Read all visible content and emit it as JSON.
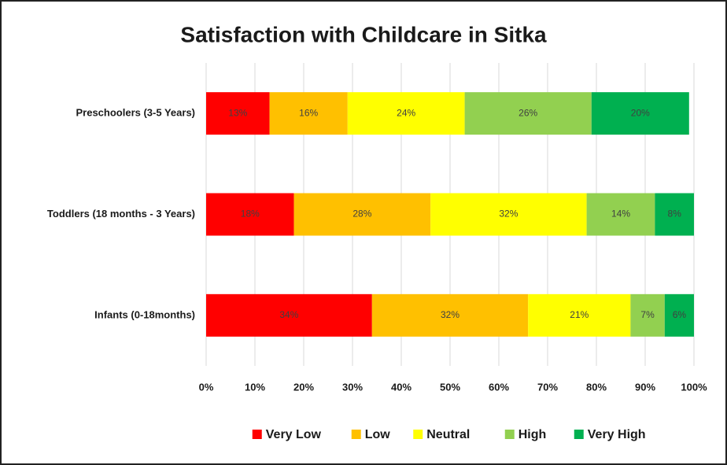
{
  "chart_data": {
    "type": "stacked_barh",
    "title": "Satisfaction with Childcare in Sitka",
    "categories": [
      "Preschoolers (3-5 Years)",
      "Toddlers (18 months - 3 Years)",
      "Infants (0-18months)"
    ],
    "series": [
      {
        "name": "Very Low",
        "color": "#ff0000",
        "values": [
          13,
          18,
          34
        ],
        "value_labels": [
          "13%",
          "18%",
          "34%"
        ]
      },
      {
        "name": "Low",
        "color": "#ffc000",
        "values": [
          16,
          28,
          32
        ],
        "value_labels": [
          "16%",
          "28%",
          "32%"
        ]
      },
      {
        "name": "Neutral",
        "color": "#ffff00",
        "values": [
          24,
          32,
          21
        ],
        "value_labels": [
          "24%",
          "32%",
          "21%"
        ]
      },
      {
        "name": "High",
        "color": "#92d050",
        "values": [
          26,
          14,
          7
        ],
        "value_labels": [
          "26%",
          "14%",
          "7%"
        ]
      },
      {
        "name": "Very High",
        "color": "#00b050",
        "values": [
          20,
          8,
          6
        ],
        "value_labels": [
          "20%",
          "8%",
          "6%"
        ]
      }
    ],
    "xlim": [
      0,
      100
    ],
    "xticks": [
      {
        "value": 0,
        "label": "0%"
      },
      {
        "value": 10,
        "label": "10%"
      },
      {
        "value": 20,
        "label": "20%"
      },
      {
        "value": 30,
        "label": "30%"
      },
      {
        "value": 40,
        "label": "40%"
      },
      {
        "value": 50,
        "label": "50%"
      },
      {
        "value": 60,
        "label": "60%"
      },
      {
        "value": 70,
        "label": "70%"
      },
      {
        "value": 80,
        "label": "80%"
      },
      {
        "value": 90,
        "label": "90%"
      },
      {
        "value": 100,
        "label": "100%"
      }
    ],
    "grid": true,
    "legend": "bottom"
  }
}
